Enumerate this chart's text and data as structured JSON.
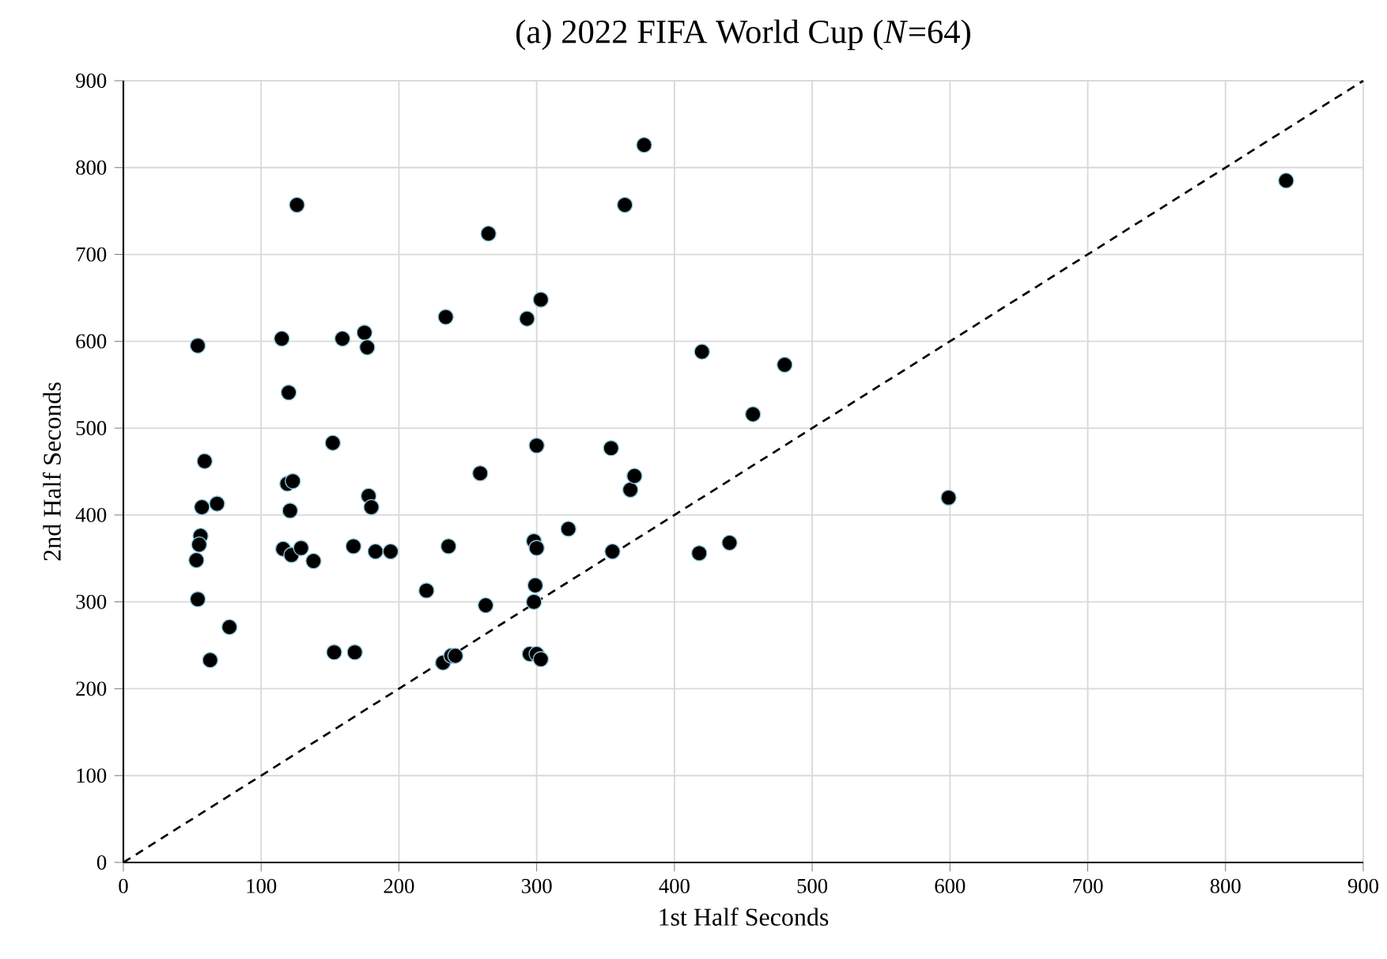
{
  "chart_data": {
    "type": "scatter",
    "title": "(a)  2022 FIFA World Cup (*N*=64)",
    "xlabel": "1st Half Seconds",
    "ylabel": "2nd Half Seconds",
    "xlim": [
      0,
      900
    ],
    "ylim": [
      0,
      900
    ],
    "xticks": [
      0,
      100,
      200,
      300,
      400,
      500,
      600,
      700,
      800,
      900
    ],
    "yticks": [
      0,
      100,
      200,
      300,
      400,
      500,
      600,
      700,
      800,
      900
    ],
    "grid": true,
    "marker": "circle",
    "series": [
      {
        "type": "scatter",
        "color": "#000000",
        "x": [
          54,
          59,
          57,
          68,
          56,
          55,
          53,
          54,
          77,
          63,
          115,
          120,
          119,
          123,
          121,
          116,
          122,
          129,
          138,
          126,
          152,
          159,
          175,
          177,
          178,
          180,
          167,
          183,
          194,
          153,
          168,
          220,
          234,
          236,
          232,
          238,
          241,
          259,
          265,
          263,
          293,
          303,
          300,
          298,
          300,
          299,
          298,
          295,
          300,
          303,
          323,
          354,
          355,
          364,
          378,
          368,
          371,
          418,
          420,
          440,
          457,
          480,
          599,
          844
        ],
        "values": [
          595,
          462,
          409,
          413,
          376,
          366,
          348,
          303,
          271,
          233,
          603,
          541,
          436,
          439,
          405,
          361,
          354,
          362,
          347,
          757,
          483,
          603,
          610,
          593,
          422,
          409,
          364,
          358,
          358,
          242,
          242,
          313,
          628,
          364,
          230,
          238,
          238,
          448,
          724,
          296,
          626,
          648,
          480,
          370,
          362,
          319,
          300,
          240,
          240,
          234,
          384,
          477,
          358,
          757,
          826,
          429,
          445,
          356,
          588,
          368,
          516,
          573,
          420,
          785
        ]
      },
      {
        "type": "line",
        "color": "#000000",
        "line_style": "dashed",
        "marker": "none",
        "x": [
          0,
          900
        ],
        "values": [
          0,
          900
        ]
      }
    ]
  }
}
